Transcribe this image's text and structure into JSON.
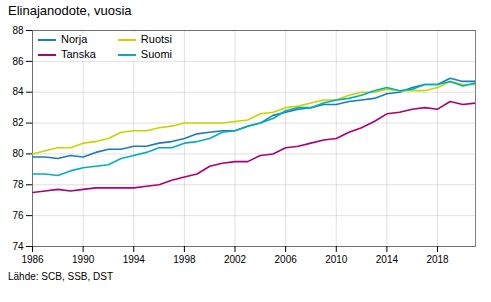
{
  "chart_data": {
    "type": "line",
    "title": "Elinajanodote, vuosia",
    "source": "Lähde: SCB, SSB, DST",
    "x": [
      1986,
      1987,
      1988,
      1989,
      1990,
      1991,
      1992,
      1993,
      1994,
      1995,
      1996,
      1997,
      1998,
      1999,
      2000,
      2001,
      2002,
      2003,
      2004,
      2005,
      2006,
      2007,
      2008,
      2009,
      2010,
      2011,
      2012,
      2013,
      2014,
      2015,
      2016,
      2017,
      2018,
      2019,
      2020,
      2021
    ],
    "series": [
      {
        "name": "Norja",
        "color": "#1f7ab8",
        "values": [
          79.8,
          79.8,
          79.7,
          79.9,
          79.8,
          80.1,
          80.3,
          80.3,
          80.5,
          80.5,
          80.7,
          80.8,
          81.0,
          81.3,
          81.4,
          81.5,
          81.5,
          81.8,
          82.0,
          82.5,
          82.7,
          82.9,
          83.0,
          83.2,
          83.2,
          83.4,
          83.5,
          83.6,
          83.9,
          84.0,
          84.3,
          84.5,
          84.5,
          84.9,
          84.7,
          84.7
        ]
      },
      {
        "name": "Ruotsi",
        "color": "#c8d400",
        "values": [
          80.0,
          80.2,
          80.4,
          80.4,
          80.7,
          80.8,
          81.0,
          81.4,
          81.5,
          81.5,
          81.7,
          81.8,
          82.0,
          82.0,
          82.0,
          82.0,
          82.1,
          82.2,
          82.6,
          82.7,
          83.0,
          83.1,
          83.3,
          83.5,
          83.5,
          83.8,
          84.0,
          84.0,
          84.2,
          84.1,
          84.1,
          84.1,
          84.3,
          84.7,
          84.5,
          84.5
        ]
      },
      {
        "name": "Tanska",
        "color": "#aa0078",
        "values": [
          77.5,
          77.6,
          77.7,
          77.6,
          77.7,
          77.8,
          77.8,
          77.8,
          77.8,
          77.9,
          78.0,
          78.3,
          78.5,
          78.7,
          79.2,
          79.4,
          79.5,
          79.5,
          79.9,
          80.0,
          80.4,
          80.5,
          80.7,
          80.9,
          81.0,
          81.4,
          81.7,
          82.1,
          82.6,
          82.7,
          82.9,
          83.0,
          82.9,
          83.4,
          83.2,
          83.3
        ]
      },
      {
        "name": "Suomi",
        "color": "#00b0b9",
        "values": [
          78.7,
          78.7,
          78.6,
          78.9,
          79.1,
          79.2,
          79.3,
          79.7,
          79.9,
          80.1,
          80.4,
          80.4,
          80.7,
          80.8,
          81.0,
          81.4,
          81.5,
          81.8,
          82.0,
          82.3,
          82.8,
          83.0,
          83.0,
          83.3,
          83.5,
          83.6,
          83.8,
          84.1,
          84.3,
          84.1,
          84.2,
          84.5,
          84.5,
          84.7,
          84.4,
          84.6
        ]
      }
    ],
    "xlim": [
      1986,
      2021
    ],
    "ylim": [
      74,
      88
    ],
    "xticks": [
      1986,
      1990,
      1994,
      1998,
      2002,
      2006,
      2010,
      2014,
      2018
    ],
    "yticks": [
      74,
      76,
      78,
      80,
      82,
      84,
      86,
      88
    ],
    "grid": true,
    "legend": "upper left"
  }
}
